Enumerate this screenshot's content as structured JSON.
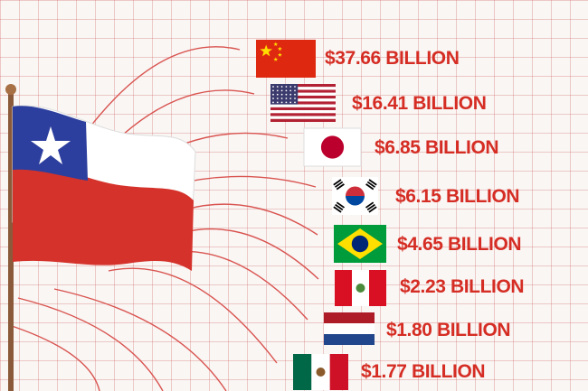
{
  "title_partial": "",
  "colors": {
    "accent": "#d52d24",
    "line": "#d9534f",
    "grid": "#e9b4b0",
    "background": "#f9f6f4"
  },
  "chart_data": {
    "type": "bar",
    "title": "",
    "categories": [
      "China",
      "United States",
      "Japan",
      "South Korea",
      "Brazil",
      "Peru",
      "Netherlands",
      "Mexico"
    ],
    "values": [
      37.66,
      16.41,
      6.85,
      6.15,
      4.65,
      2.23,
      1.8,
      1.77
    ],
    "unit": "BILLION",
    "labels": [
      "$37.66 BILLION",
      "$16.41 BILLION",
      "$6.85 BILLION",
      "$6.15 BILLION",
      "$4.65 BILLION",
      "$2.23 BILLION",
      "$1.80 BILLION",
      "$1.77 BILLION"
    ],
    "flag_icons": [
      "china-flag-icon",
      "usa-flag-icon",
      "japan-flag-icon",
      "south-korea-flag-icon",
      "brazil-flag-icon",
      "peru-flag-icon",
      "netherlands-flag-icon",
      "mexico-flag-icon"
    ],
    "exporter_icon": "chile-flag-icon",
    "grid": true,
    "legend": "none"
  }
}
